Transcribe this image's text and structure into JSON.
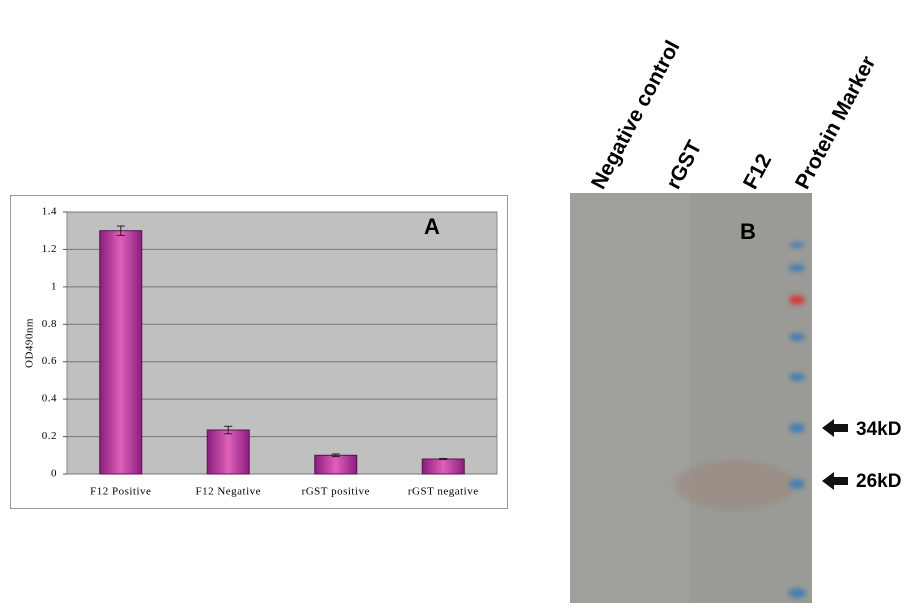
{
  "chart_data": {
    "type": "bar",
    "annotation": "A",
    "y_label": "OD490nm",
    "categories": [
      "F12 Positive",
      "F12 Negative",
      "rGST positive",
      "rGST negative"
    ],
    "values": [
      1.3,
      0.235,
      0.1,
      0.08
    ],
    "errors": [
      0.025,
      0.02,
      0.007,
      0.003
    ],
    "color": "#a0288c",
    "ylim": [
      0,
      1.4
    ],
    "yticks": [
      0,
      0.2,
      0.4,
      0.6,
      0.8,
      1,
      1.2,
      1.4
    ],
    "grid": true
  },
  "blot": {
    "label": "B",
    "lanes": [
      "Negative control",
      "rGST",
      "F12",
      "Protein Marker"
    ],
    "markers": [
      "34kD",
      "26kD"
    ]
  }
}
